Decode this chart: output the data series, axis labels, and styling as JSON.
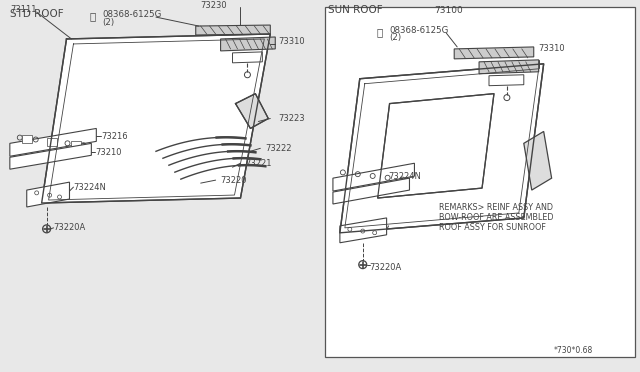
{
  "bg_color": "#e8e8e8",
  "panel_bg": "#ffffff",
  "fig_width": 6.4,
  "fig_height": 3.72,
  "dpi": 100,
  "lc": "#444444",
  "tc": "#444444",
  "title_left": "STD ROOF",
  "title_right": "SUN ROOF",
  "part_number_right": "73100",
  "footer_text": "*730*0.68",
  "remarks": [
    "REMARKS> REINF ASSY AND",
    "BOW-ROOF ARE ASSEMBLED",
    "ROOF ASSY FOR SUNROOF"
  ]
}
